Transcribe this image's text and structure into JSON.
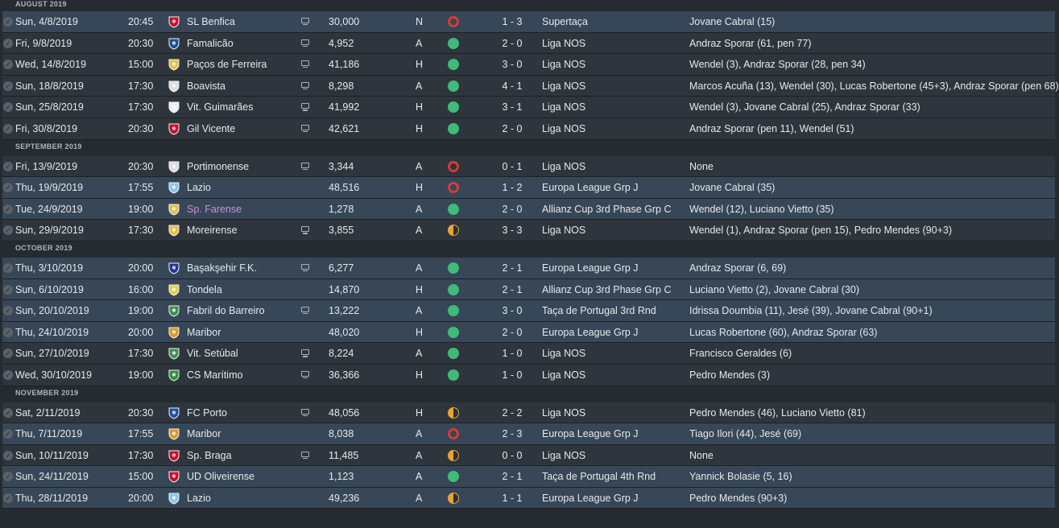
{
  "months": [
    {
      "label": "AUGUST 2019",
      "matches": [
        {
          "date": "Sun, 4/8/2019",
          "time": "20:45",
          "opponent": "SL Benfica",
          "crest_color": "#c8102e",
          "tv": true,
          "attendance": "30,000",
          "venue": "N",
          "result": "L",
          "score": "1 - 3",
          "competition": "Supertaça",
          "scorers": "Jovane Cabral (15)",
          "row_style": "cup"
        },
        {
          "date": "Fri, 9/8/2019",
          "time": "20:30",
          "opponent": "Famalicão",
          "crest_color": "#1f4e9a",
          "tv": true,
          "attendance": "4,952",
          "venue": "A",
          "result": "W",
          "score": "2 - 0",
          "competition": "Liga NOS",
          "scorers": "Andraz Sporar (61, pen 77)",
          "row_style": "league"
        },
        {
          "date": "Wed, 14/8/2019",
          "time": "15:00",
          "opponent": "Paços de Ferreira",
          "crest_color": "#e0c24b",
          "tv": true,
          "attendance": "41,186",
          "venue": "H",
          "result": "W",
          "score": "3 - 0",
          "competition": "Liga NOS",
          "scorers": "Wendel (3), Andraz Sporar (28, pen 34)",
          "row_style": "league"
        },
        {
          "date": "Sun, 18/8/2019",
          "time": "17:30",
          "opponent": "Boavista",
          "crest_color": "#dddddd",
          "tv": true,
          "attendance": "8,298",
          "venue": "A",
          "result": "W",
          "score": "4 - 1",
          "competition": "Liga NOS",
          "scorers": "Marcos Acuña (13), Wendel (30), Lucas Robertone (45+3), Andraz Sporar (pen 68)",
          "row_style": "league"
        },
        {
          "date": "Sun, 25/8/2019",
          "time": "17:30",
          "opponent": "Vit. Guimarães",
          "crest_color": "#eeeeee",
          "tv": true,
          "attendance": "41,992",
          "venue": "H",
          "result": "W",
          "score": "3 - 1",
          "competition": "Liga NOS",
          "scorers": "Wendel (3), Jovane Cabral (25), Andraz Sporar (33)",
          "row_style": "league"
        },
        {
          "date": "Fri, 30/8/2019",
          "time": "20:30",
          "opponent": "Gil Vicente",
          "crest_color": "#c8102e",
          "tv": true,
          "attendance": "42,621",
          "venue": "H",
          "result": "W",
          "score": "2 - 0",
          "competition": "Liga NOS",
          "scorers": "Andraz Sporar (pen 11), Wendel (51)",
          "row_style": "league"
        }
      ]
    },
    {
      "label": "SEPTEMBER 2019",
      "matches": [
        {
          "date": "Fri, 13/9/2019",
          "time": "20:30",
          "opponent": "Portimonense",
          "crest_color": "#dddddd",
          "tv": true,
          "attendance": "3,344",
          "venue": "A",
          "result": "L",
          "score": "0 - 1",
          "competition": "Liga NOS",
          "scorers": "None",
          "row_style": "league"
        },
        {
          "date": "Thu, 19/9/2019",
          "time": "17:55",
          "opponent": "Lazio",
          "crest_color": "#8ec6ea",
          "tv": false,
          "attendance": "48,516",
          "venue": "H",
          "result": "L",
          "score": "1 - 2",
          "competition": "Europa League Grp J",
          "scorers": "Jovane Cabral (35)",
          "row_style": "cup"
        },
        {
          "date": "Tue, 24/9/2019",
          "time": "19:00",
          "opponent": "Sp. Farense",
          "crest_color": "#e0c24b",
          "tv": false,
          "attendance": "1,278",
          "venue": "A",
          "result": "W",
          "score": "2 - 0",
          "competition": "Allianz Cup 3rd Phase Grp C",
          "scorers": "Wendel (12), Luciano Vietto (35)",
          "row_style": "cup",
          "highlight": true
        },
        {
          "date": "Sun, 29/9/2019",
          "time": "17:30",
          "opponent": "Moreirense",
          "crest_color": "#e0c24b",
          "tv": true,
          "attendance": "3,855",
          "venue": "A",
          "result": "D",
          "score": "3 - 3",
          "competition": "Liga NOS",
          "scorers": "Wendel (1), Andraz Sporar (pen 15), Pedro Mendes (90+3)",
          "row_style": "league"
        }
      ]
    },
    {
      "label": "OCTOBER 2019",
      "matches": [
        {
          "date": "Thu, 3/10/2019",
          "time": "20:00",
          "opponent": "Başakşehir F.K.",
          "crest_color": "#25358f",
          "tv": true,
          "attendance": "6,277",
          "venue": "A",
          "result": "W",
          "score": "2 - 1",
          "competition": "Europa League Grp J",
          "scorers": "Andraz Sporar (6, 69)",
          "row_style": "cup"
        },
        {
          "date": "Sun, 6/10/2019",
          "time": "16:00",
          "opponent": "Tondela",
          "crest_color": "#e0d24b",
          "tv": false,
          "attendance": "14,870",
          "venue": "H",
          "result": "W",
          "score": "2 - 1",
          "competition": "Allianz Cup 3rd Phase Grp C",
          "scorers": "Luciano Vietto (2), Jovane Cabral (30)",
          "row_style": "cup"
        },
        {
          "date": "Sun, 20/10/2019",
          "time": "19:00",
          "opponent": "Fabril do Barreiro",
          "crest_color": "#3f8f4f",
          "tv": true,
          "attendance": "13,222",
          "venue": "A",
          "result": "W",
          "score": "3 - 0",
          "competition": "Taça de Portugal 3rd Rnd",
          "scorers": "Idrissa Doumbia (11), Jesé (39), Jovane Cabral (90+1)",
          "row_style": "cup"
        },
        {
          "date": "Thu, 24/10/2019",
          "time": "20:00",
          "opponent": "Maribor",
          "crest_color": "#d99a2b",
          "tv": false,
          "attendance": "48,020",
          "venue": "H",
          "result": "W",
          "score": "2 - 0",
          "competition": "Europa League Grp J",
          "scorers": "Lucas Robertone (60), Andraz Sporar (63)",
          "row_style": "cup"
        },
        {
          "date": "Sun, 27/10/2019",
          "time": "17:30",
          "opponent": "Vit. Setúbal",
          "crest_color": "#3f8f4f",
          "tv": true,
          "attendance": "8,224",
          "venue": "A",
          "result": "W",
          "score": "1 - 0",
          "competition": "Liga NOS",
          "scorers": "Francisco Geraldes (6)",
          "row_style": "league"
        },
        {
          "date": "Wed, 30/10/2019",
          "time": "19:00",
          "opponent": "CS Marítimo",
          "crest_color": "#2f8f3f",
          "tv": true,
          "attendance": "36,366",
          "venue": "H",
          "result": "W",
          "score": "1 - 0",
          "competition": "Liga NOS",
          "scorers": "Pedro Mendes (3)",
          "row_style": "league"
        }
      ]
    },
    {
      "label": "NOVEMBER 2019",
      "matches": [
        {
          "date": "Sat, 2/11/2019",
          "time": "20:30",
          "opponent": "FC Porto",
          "crest_color": "#1f4fa0",
          "tv": true,
          "attendance": "48,056",
          "venue": "H",
          "result": "D",
          "score": "2 - 2",
          "competition": "Liga NOS",
          "scorers": "Pedro Mendes (46), Luciano Vietto (81)",
          "row_style": "league"
        },
        {
          "date": "Thu, 7/11/2019",
          "time": "17:55",
          "opponent": "Maribor",
          "crest_color": "#d99a2b",
          "tv": false,
          "attendance": "8,038",
          "venue": "A",
          "result": "L",
          "score": "2 - 3",
          "competition": "Europa League Grp J",
          "scorers": "Tiago Ilori (44), Jesé (69)",
          "row_style": "cup"
        },
        {
          "date": "Sun, 10/11/2019",
          "time": "17:30",
          "opponent": "Sp. Braga",
          "crest_color": "#c8102e",
          "tv": true,
          "attendance": "11,485",
          "venue": "A",
          "result": "D",
          "score": "0 - 0",
          "competition": "Liga NOS",
          "scorers": "None",
          "row_style": "league"
        },
        {
          "date": "Sun, 24/11/2019",
          "time": "15:00",
          "opponent": "UD Oliveirense",
          "crest_color": "#c8102e",
          "tv": false,
          "attendance": "1,123",
          "venue": "A",
          "result": "W",
          "score": "2 - 1",
          "competition": "Taça de Portugal 4th Rnd",
          "scorers": "Yannick Bolasie (5, 16)",
          "row_style": "cup"
        },
        {
          "date": "Thu, 28/11/2019",
          "time": "20:00",
          "opponent": "Lazio",
          "crest_color": "#8ec6ea",
          "tv": false,
          "attendance": "49,236",
          "venue": "A",
          "result": "D",
          "score": "1 - 1",
          "competition": "Europa League Grp J",
          "scorers": "Pedro Mendes (90+3)",
          "row_style": "cup"
        }
      ]
    }
  ],
  "colors": {
    "win": "#3fba78",
    "loss": "#d23c3c",
    "draw": "#e8a33a",
    "highlight_text": "#c98ee0"
  },
  "icons": {
    "checkmark": "✓",
    "tv": "tv-icon",
    "crest": "club-crest-icon"
  }
}
